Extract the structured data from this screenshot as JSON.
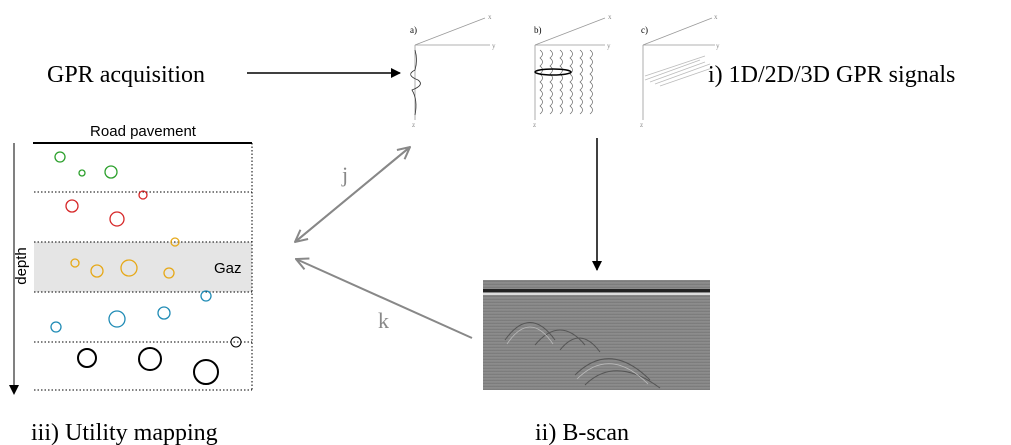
{
  "labels": {
    "acquisition": "GPR acquisition",
    "signals": "i) 1D/2D/3D GPR signals",
    "bscan": "ii) B-scan",
    "mapping": "iii) Utility mapping"
  },
  "signal_panels": [
    {
      "label": "a)",
      "x": "x",
      "y": "y",
      "z": "z"
    },
    {
      "label": "b)",
      "x": "x",
      "y": "y",
      "z": "z"
    },
    {
      "label": "c)",
      "x": "x",
      "y": "y",
      "z": "z"
    }
  ],
  "arrows": {
    "j": "j",
    "k": "k"
  },
  "utility_map": {
    "title": "Road pavement",
    "axis": "depth",
    "band": "Gaz"
  }
}
